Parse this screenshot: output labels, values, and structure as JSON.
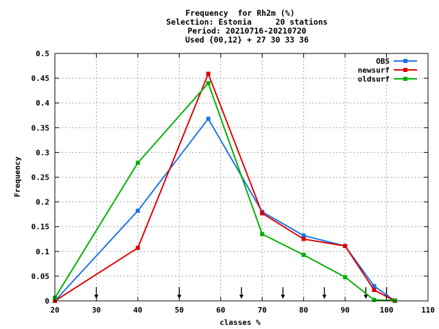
{
  "chart_data": {
    "type": "line",
    "title_lines": [
      "Frequency  for Rh2m (%)",
      "Selection: Estonia     20 stations",
      "Period: 20210716-20210720",
      "Used {00,12} + 27 30 33 36"
    ],
    "xlabel": "classes %",
    "ylabel": "Frequency",
    "xlim": [
      20,
      110
    ],
    "ylim": [
      0,
      0.5
    ],
    "x_ticks": [
      "20",
      "30",
      "40",
      "50",
      "60",
      "70",
      "80",
      "90",
      "100",
      "110"
    ],
    "y_ticks": [
      "0",
      "0.05",
      "0.1",
      "0.15",
      "0.2",
      "0.25",
      "0.3",
      "0.35",
      "0.4",
      "0.45",
      "0.5"
    ],
    "grid": true,
    "legend_position": "top-right",
    "arrow_markers_x": [
      30,
      50,
      65,
      75,
      85,
      95,
      100
    ],
    "series": [
      {
        "name": "OBS",
        "color": "#1a73e8",
        "x": [
          20,
          40,
          57,
          70,
          80,
          90,
          97,
          102
        ],
        "y": [
          0.0,
          0.182,
          0.368,
          0.18,
          0.132,
          0.111,
          0.03,
          0.0
        ]
      },
      {
        "name": "newsurf",
        "color": "#e00000",
        "x": [
          20,
          40,
          57,
          70,
          80,
          90,
          97,
          102
        ],
        "y": [
          0.0,
          0.107,
          0.459,
          0.177,
          0.125,
          0.111,
          0.022,
          0.0
        ]
      },
      {
        "name": "oldsurf",
        "color": "#00b000",
        "x": [
          20,
          40,
          57,
          70,
          80,
          90,
          97,
          102
        ],
        "y": [
          0.006,
          0.279,
          0.44,
          0.135,
          0.093,
          0.048,
          0.002,
          0.001
        ]
      }
    ]
  }
}
